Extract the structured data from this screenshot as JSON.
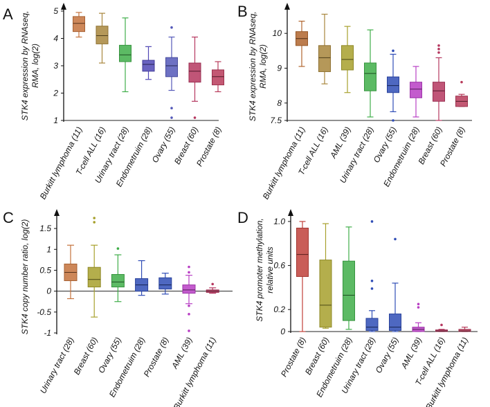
{
  "chart_data": [
    {
      "type": "box",
      "panel_label": "A",
      "ylabel_line1": "STK4 expression by RNAseq,",
      "ylabel_line2": "RMA, log(2)",
      "ylim": [
        1,
        5
      ],
      "yticks": [
        1,
        2,
        3,
        4,
        5
      ],
      "categories": [
        "Burkitt lymphoma (11)",
        "T-cell ALL (16)",
        "Urinary tract (28)",
        "Endometruim (28)",
        "Ovary (55)",
        "Breast (60)",
        "Prostate (8)"
      ],
      "colors": [
        "#c4723c",
        "#a8863c",
        "#3fae49",
        "#5047b5",
        "#5358b8",
        "#b5375f",
        "#b83a5a"
      ],
      "boxes": [
        {
          "min": 4.05,
          "q1": 4.25,
          "median": 4.55,
          "q3": 4.8,
          "max": 4.95,
          "outliers": []
        },
        {
          "min": 3.1,
          "q1": 3.8,
          "median": 4.1,
          "q3": 4.45,
          "max": 4.92,
          "outliers": []
        },
        {
          "min": 2.05,
          "q1": 3.15,
          "median": 3.4,
          "q3": 3.75,
          "max": 4.75,
          "outliers": []
        },
        {
          "min": 2.5,
          "q1": 2.8,
          "median": 3.05,
          "q3": 3.2,
          "max": 3.7,
          "outliers": []
        },
        {
          "min": 2.1,
          "q1": 2.6,
          "median": 3.0,
          "q3": 3.3,
          "max": 4.05,
          "outliers": [
            4.4,
            1.45,
            1.1
          ]
        },
        {
          "min": 1.7,
          "q1": 2.4,
          "median": 2.8,
          "q3": 3.1,
          "max": 4.05,
          "outliers": [
            1.1
          ]
        },
        {
          "min": 2.05,
          "q1": 2.3,
          "median": 2.6,
          "q3": 2.85,
          "max": 3.15,
          "outliers": []
        }
      ]
    },
    {
      "type": "box",
      "panel_label": "B",
      "ylabel_line1": "STK4 expression by RNAseq,",
      "ylabel_line2": "RMA, log(2)",
      "ylim": [
        7.5,
        10.6
      ],
      "yticks": [
        7.5,
        8,
        9,
        10
      ],
      "categories": [
        "Burkitt lymphoma (11)",
        "T-cell ALL (16)",
        "AML (39)",
        "Urinary tract (28)",
        "Ovary (55)",
        "Endometruim (28)",
        "Breast (60)",
        "Prostate (8)"
      ],
      "colors": [
        "#b0652d",
        "#a8863c",
        "#a7a02c",
        "#3fae49",
        "#2f4db6",
        "#b83ec4",
        "#b5375f",
        "#b83a5a"
      ],
      "boxes": [
        {
          "min": 9.05,
          "q1": 9.65,
          "median": 9.85,
          "q3": 10.05,
          "max": 10.35,
          "outliers": []
        },
        {
          "min": 8.55,
          "q1": 8.9,
          "median": 9.3,
          "q3": 9.65,
          "max": 10.55,
          "outliers": []
        },
        {
          "min": 8.3,
          "q1": 8.95,
          "median": 9.25,
          "q3": 9.65,
          "max": 10.2,
          "outliers": []
        },
        {
          "min": 7.6,
          "q1": 8.35,
          "median": 8.85,
          "q3": 9.15,
          "max": 10.1,
          "outliers": []
        },
        {
          "min": 7.75,
          "q1": 8.3,
          "median": 8.5,
          "q3": 8.75,
          "max": 9.4,
          "outliers": [
            9.5,
            7.5
          ]
        },
        {
          "min": 7.6,
          "q1": 8.15,
          "median": 8.4,
          "q3": 8.6,
          "max": 9.05,
          "outliers": []
        },
        {
          "min": 7.5,
          "q1": 8.05,
          "median": 8.35,
          "q3": 8.6,
          "max": 9.3,
          "outliers": [
            9.65,
            9.55,
            9.45
          ]
        },
        {
          "min": 7.9,
          "q1": 7.9,
          "median": 8.05,
          "q3": 8.2,
          "max": 8.25,
          "outliers": [
            8.6
          ]
        }
      ]
    },
    {
      "type": "box",
      "panel_label": "C",
      "ylabel_line1": "STK4 copy number ratio, log(2)",
      "ylabel_line2": "",
      "ylim": [
        -1,
        1.75
      ],
      "yticks": [
        -1,
        -0.5,
        0,
        0.5,
        1,
        1.5
      ],
      "ytick_labels": [
        "-1",
        "-0.5",
        "0",
        "0.5",
        "1",
        "1.5"
      ],
      "categories": [
        "Urinary tract (28)",
        "Breast (60)",
        "Ovary (55)",
        "Endometruim (28)",
        "Prostate (8)",
        "AML (39)",
        "Burkitt lymphoma (11)"
      ],
      "colors": [
        "#c4723c",
        "#a7a02c",
        "#3fae49",
        "#2f4db6",
        "#2f4db6",
        "#b83ec4",
        "#b5375f"
      ],
      "boxes": [
        {
          "min": -0.18,
          "q1": 0.25,
          "median": 0.45,
          "q3": 0.65,
          "max": 1.1,
          "outliers": []
        },
        {
          "min": -0.62,
          "q1": 0.1,
          "median": 0.28,
          "q3": 0.57,
          "max": 1.1,
          "outliers": [
            1.75,
            1.65
          ]
        },
        {
          "min": -0.25,
          "q1": 0.1,
          "median": 0.22,
          "q3": 0.4,
          "max": 0.87,
          "outliers": [
            1.02
          ]
        },
        {
          "min": -0.1,
          "q1": 0.0,
          "median": 0.15,
          "q3": 0.3,
          "max": 0.73,
          "outliers": []
        },
        {
          "min": -0.07,
          "q1": 0.05,
          "median": 0.15,
          "q3": 0.32,
          "max": 0.43,
          "outliers": []
        },
        {
          "min": -0.3,
          "q1": -0.05,
          "median": 0.03,
          "q3": 0.15,
          "max": 0.38,
          "outliers": [
            0.58,
            0.45,
            -0.35,
            -0.55,
            -0.95
          ]
        },
        {
          "min": -0.05,
          "q1": -0.03,
          "median": 0.0,
          "q3": 0.03,
          "max": 0.08,
          "outliers": [
            0.17
          ]
        }
      ]
    },
    {
      "type": "box",
      "panel_label": "D",
      "ylabel_line1": "STK4 promoter methylation,",
      "ylabel_line2": "relative units",
      "ylim": [
        0,
        1.05
      ],
      "yticks": [
        0,
        0.2,
        0.6,
        1.0
      ],
      "ytick_labels": [
        "0",
        "0.2",
        "0.6",
        "1.0"
      ],
      "categories": [
        "Prostate (8)",
        "Breast (60)",
        "Endometruim (28)",
        "Urinary tract (28)",
        "Ovary (55)",
        "AML (39)",
        "T-cell ALL (16)",
        "Burkitt lymphoma (11)"
      ],
      "colors": [
        "#c0403a",
        "#a7a02c",
        "#3fae49",
        "#2f4db6",
        "#2f4db6",
        "#b83ec4",
        "#b5375f",
        "#b83a5a"
      ],
      "boxes": [
        {
          "min": 0.0,
          "q1": 0.5,
          "median": 0.7,
          "q3": 0.94,
          "max": 1.0,
          "outliers": []
        },
        {
          "min": 0.03,
          "q1": 0.04,
          "median": 0.24,
          "q3": 0.65,
          "max": 0.98,
          "outliers": []
        },
        {
          "min": 0.02,
          "q1": 0.1,
          "median": 0.33,
          "q3": 0.64,
          "max": 0.95,
          "outliers": []
        },
        {
          "min": 0.0,
          "q1": 0.01,
          "median": 0.04,
          "q3": 0.12,
          "max": 0.19,
          "outliers": [
            1.0,
            0.46,
            0.39
          ]
        },
        {
          "min": 0.0,
          "q1": 0.01,
          "median": 0.04,
          "q3": 0.16,
          "max": 0.44,
          "outliers": [
            0.84
          ]
        },
        {
          "min": 0.0,
          "q1": 0.0,
          "median": 0.02,
          "q3": 0.04,
          "max": 0.08,
          "outliers": [
            0.25,
            0.22
          ]
        },
        {
          "min": 0.0,
          "q1": 0.0,
          "median": 0.005,
          "q3": 0.015,
          "max": 0.02,
          "outliers": [
            0.06
          ]
        },
        {
          "min": 0.0,
          "q1": 0.0,
          "median": 0.005,
          "q3": 0.02,
          "max": 0.04,
          "outliers": []
        }
      ]
    }
  ]
}
